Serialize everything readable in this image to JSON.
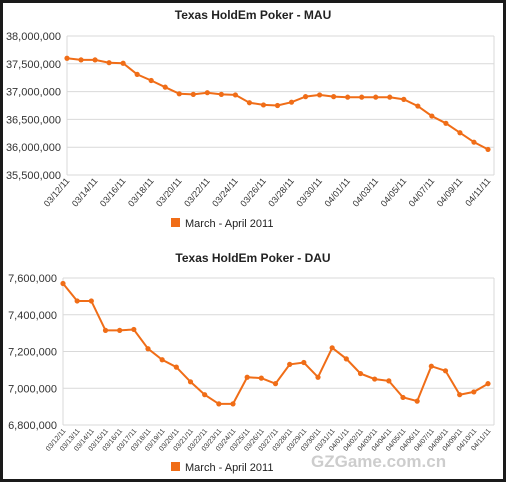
{
  "watermark": "GZGame.com.cn",
  "colors": {
    "series": "#f06d17",
    "grid": "#d9d9d9"
  },
  "chart_data": [
    {
      "type": "line",
      "title": "Texas HoldEm Poker - MAU",
      "legend": "March - April 2011",
      "legend_position": "bottom",
      "grid": true,
      "x": [
        "03/12/11",
        "03/13/11",
        "03/14/11",
        "03/15/11",
        "03/16/11",
        "03/17/11",
        "03/18/11",
        "03/19/11",
        "03/20/11",
        "03/21/11",
        "03/22/11",
        "03/23/11",
        "03/24/11",
        "03/25/11",
        "03/26/11",
        "03/27/11",
        "03/28/11",
        "03/29/11",
        "03/30/11",
        "03/31/11",
        "04/01/11",
        "04/02/11",
        "04/03/11",
        "04/04/11",
        "04/05/11",
        "04/06/11",
        "04/07/11",
        "04/08/11",
        "04/09/11",
        "04/10/11",
        "04/11/11"
      ],
      "tick_labels": [
        "03/12/11",
        "03/14/11",
        "03/16/11",
        "03/18/11",
        "03/20/11",
        "03/22/11",
        "03/24/11",
        "03/26/11",
        "03/28/11",
        "03/30/11",
        "04/01/11",
        "04/03/11",
        "04/05/11",
        "04/07/11",
        "04/09/11",
        "04/11/11"
      ],
      "y_ticks": [
        "38,000,000",
        "37,500,000",
        "37,000,000",
        "36,500,000",
        "36,000,000",
        "35,500,000"
      ],
      "ylim": [
        35500000,
        38000000
      ],
      "series": [
        {
          "name": "March - April 2011",
          "values": [
            37600000,
            37570000,
            37570000,
            37520000,
            37510000,
            37310000,
            37200000,
            37080000,
            36960000,
            36950000,
            36980000,
            36950000,
            36940000,
            36800000,
            36760000,
            36750000,
            36810000,
            36910000,
            36940000,
            36910000,
            36900000,
            36900000,
            36900000,
            36900000,
            36860000,
            36740000,
            36560000,
            36430000,
            36260000,
            36090000,
            35960000
          ]
        }
      ]
    },
    {
      "type": "line",
      "title": "Texas HoldEm Poker - DAU",
      "legend": "March - April 2011",
      "legend_position": "bottom",
      "grid": true,
      "x": [
        "03/12/11",
        "03/13/11",
        "03/14/11",
        "03/15/11",
        "03/16/11",
        "03/17/11",
        "03/18/11",
        "03/19/11",
        "03/20/11",
        "03/21/11",
        "03/22/11",
        "03/23/11",
        "03/24/11",
        "03/25/11",
        "03/26/11",
        "03/27/11",
        "03/28/11",
        "03/29/11",
        "03/30/11",
        "03/31/11",
        "04/01/11",
        "04/02/11",
        "04/03/11",
        "04/04/11",
        "04/05/11",
        "04/06/11",
        "04/07/11",
        "04/08/11",
        "04/09/11",
        "04/10/11",
        "04/11/11"
      ],
      "tick_labels": [
        "03/12/11",
        "03/13/11",
        "03/14/11",
        "03/15/11",
        "03/16/11",
        "03/17/11",
        "03/18/11",
        "03/19/11",
        "03/20/11",
        "03/21/11",
        "03/22/11",
        "03/23/11",
        "03/24/11",
        "03/25/11",
        "03/26/11",
        "03/27/11",
        "03/28/11",
        "03/29/11",
        "03/30/11",
        "03/31/11",
        "04/01/11",
        "04/02/11",
        "04/03/11",
        "04/04/11",
        "04/05/11",
        "04/06/11",
        "04/07/11",
        "04/08/11",
        "04/09/11",
        "04/10/11",
        "04/11/11"
      ],
      "y_ticks": [
        "7,600,000",
        "7,400,000",
        "7,200,000",
        "7,000,000",
        "6,800,000"
      ],
      "ylim": [
        6800000,
        7600000
      ],
      "series": [
        {
          "name": "March - April 2011",
          "values": [
            7570000,
            7475000,
            7475000,
            7315000,
            7315000,
            7320000,
            7215000,
            7155000,
            7115000,
            7035000,
            6965000,
            6915000,
            6915000,
            7060000,
            7055000,
            7025000,
            7130000,
            7140000,
            7060000,
            7220000,
            7160000,
            7080000,
            7050000,
            7040000,
            6950000,
            6930000,
            7120000,
            7095000,
            6965000,
            6980000,
            7025000
          ]
        }
      ]
    }
  ]
}
